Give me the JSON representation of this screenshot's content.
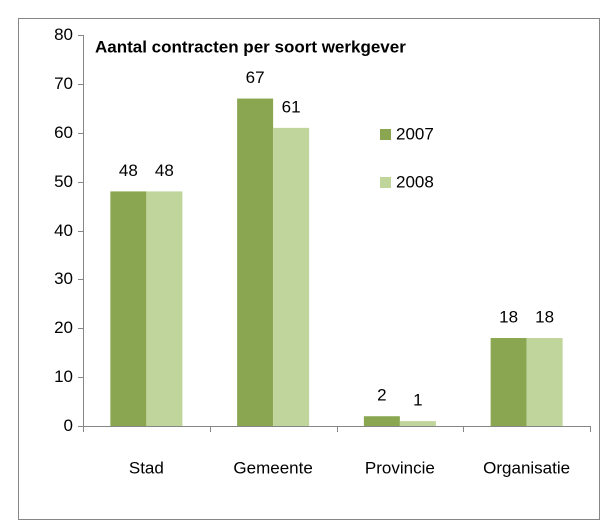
{
  "chart_data": {
    "type": "bar",
    "title": "Aantal contracten per soort werkgever",
    "categories": [
      "Stad",
      "Gemeente",
      "Provincie",
      "Organisatie"
    ],
    "series": [
      {
        "name": "2007",
        "color": "#8aa650",
        "values": [
          48,
          67,
          2,
          18
        ]
      },
      {
        "name": "2008",
        "color": "#bfd59b",
        "values": [
          48,
          61,
          1,
          18
        ]
      }
    ],
    "ylim": [
      0,
      80
    ],
    "yticks": [
      0,
      10,
      20,
      30,
      40,
      50,
      60,
      70,
      80
    ],
    "grid": false,
    "legend": "right"
  }
}
